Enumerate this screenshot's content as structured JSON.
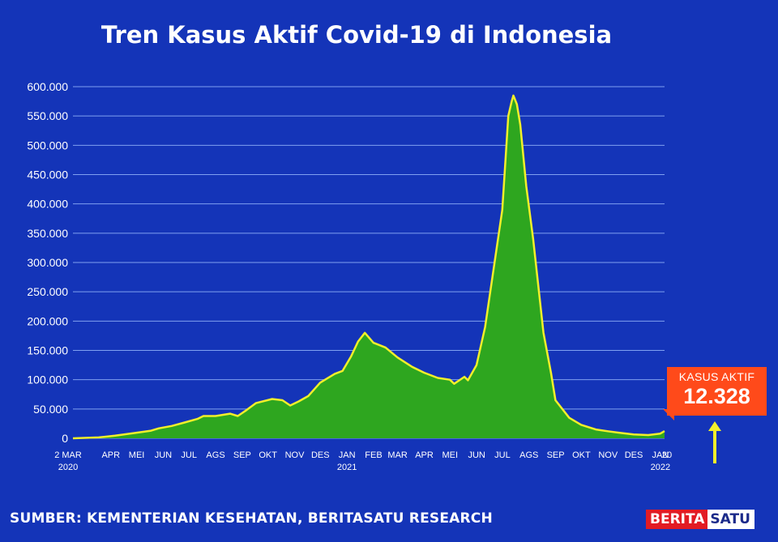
{
  "title": "Tren Kasus Aktif Covid-19 di Indonesia",
  "source": "SUMBER: KEMENTERIAN KESEHATAN, BERITASATU RESEARCH",
  "logo": {
    "part1": "BERITA",
    "part2": "SATU"
  },
  "callout": {
    "label": "KASUS AKTIF",
    "value": "12.328"
  },
  "colors": {
    "background": "#1434b8",
    "fill": "#2ea61f",
    "line": "#f2ef2a",
    "callout": "#ff4a1a",
    "gridline": "#7fa0f0"
  },
  "icons": {
    "arrow": "arrow-up-icon"
  },
  "chart_data": {
    "type": "area",
    "title": "Tren Kasus Aktif Covid-19 di Indonesia",
    "xlabel": "",
    "ylabel": "",
    "ylim": [
      0,
      600000
    ],
    "xlim": [
      "2020-03-02",
      "2022-01-20"
    ],
    "grid": true,
    "y_ticks": [
      "0",
      "50.000",
      "100.000",
      "150.000",
      "200.000",
      "250.000",
      "300.000",
      "350.000",
      "400.000",
      "450.000",
      "500.000",
      "550.000",
      "600.000"
    ],
    "x_ticks": [
      {
        "date": "2020-03-02",
        "label": "2 MAR",
        "sub": "2020"
      },
      {
        "date": "2020-04-01",
        "label": "APR"
      },
      {
        "date": "2020-05-01",
        "label": "MEI"
      },
      {
        "date": "2020-06-01",
        "label": "JUN"
      },
      {
        "date": "2020-07-01",
        "label": "JUL"
      },
      {
        "date": "2020-08-01",
        "label": "AGS"
      },
      {
        "date": "2020-09-01",
        "label": "SEP"
      },
      {
        "date": "2020-10-01",
        "label": "OKT"
      },
      {
        "date": "2020-11-01",
        "label": "NOV"
      },
      {
        "date": "2020-12-01",
        "label": "DES"
      },
      {
        "date": "2021-01-01",
        "label": "JAN",
        "sub": "2021"
      },
      {
        "date": "2021-02-01",
        "label": "FEB"
      },
      {
        "date": "2021-03-01",
        "label": "MAR"
      },
      {
        "date": "2021-04-01",
        "label": "APR"
      },
      {
        "date": "2021-05-01",
        "label": "MEI"
      },
      {
        "date": "2021-06-01",
        "label": "JUN"
      },
      {
        "date": "2021-07-01",
        "label": "JUL"
      },
      {
        "date": "2021-08-01",
        "label": "AGS"
      },
      {
        "date": "2021-09-01",
        "label": "SEP"
      },
      {
        "date": "2021-10-01",
        "label": "OKT"
      },
      {
        "date": "2021-11-01",
        "label": "NOV"
      },
      {
        "date": "2021-12-01",
        "label": "DES"
      },
      {
        "date": "2022-01-01",
        "label": "JAN",
        "sub": "2022"
      },
      {
        "date": "2022-01-20",
        "label": "20"
      }
    ],
    "series": [
      {
        "name": "Kasus Aktif",
        "points": [
          [
            "2020-03-02",
            0
          ],
          [
            "2020-04-01",
            1500
          ],
          [
            "2020-04-20",
            4500
          ],
          [
            "2020-05-10",
            8500
          ],
          [
            "2020-06-01",
            13000
          ],
          [
            "2020-06-10",
            17000
          ],
          [
            "2020-06-25",
            21000
          ],
          [
            "2020-07-10",
            27000
          ],
          [
            "2020-07-25",
            33000
          ],
          [
            "2020-08-01",
            38000
          ],
          [
            "2020-08-15",
            38000
          ],
          [
            "2020-09-01",
            42000
          ],
          [
            "2020-09-10",
            38000
          ],
          [
            "2020-09-20",
            48000
          ],
          [
            "2020-10-01",
            60000
          ],
          [
            "2020-10-20",
            67000
          ],
          [
            "2020-11-01",
            65000
          ],
          [
            "2020-11-10",
            56000
          ],
          [
            "2020-11-20",
            63000
          ],
          [
            "2020-12-01",
            72000
          ],
          [
            "2020-12-15",
            95000
          ],
          [
            "2021-01-01",
            110000
          ],
          [
            "2021-01-10",
            115000
          ],
          [
            "2021-01-20",
            140000
          ],
          [
            "2021-01-28",
            165000
          ],
          [
            "2021-02-05",
            180000
          ],
          [
            "2021-02-15",
            163000
          ],
          [
            "2021-03-01",
            155000
          ],
          [
            "2021-03-15",
            138000
          ],
          [
            "2021-04-01",
            122000
          ],
          [
            "2021-04-15",
            112000
          ],
          [
            "2021-05-01",
            103000
          ],
          [
            "2021-05-15",
            100000
          ],
          [
            "2021-05-20",
            93000
          ],
          [
            "2021-06-01",
            105000
          ],
          [
            "2021-06-05",
            99000
          ],
          [
            "2021-06-15",
            125000
          ],
          [
            "2021-06-25",
            190000
          ],
          [
            "2021-07-05",
            290000
          ],
          [
            "2021-07-15",
            390000
          ],
          [
            "2021-07-22",
            550000
          ],
          [
            "2021-07-26",
            575000
          ],
          [
            "2021-07-28",
            585000
          ],
          [
            "2021-08-01",
            570000
          ],
          [
            "2021-08-05",
            535000
          ],
          [
            "2021-08-12",
            430000
          ],
          [
            "2021-08-20",
            340000
          ],
          [
            "2021-09-01",
            180000
          ],
          [
            "2021-09-10",
            110000
          ],
          [
            "2021-09-15",
            65000
          ],
          [
            "2021-10-01",
            35000
          ],
          [
            "2021-10-15",
            23000
          ],
          [
            "2021-11-01",
            15000
          ],
          [
            "2021-11-15",
            12000
          ],
          [
            "2021-12-01",
            9000
          ],
          [
            "2021-12-15",
            6500
          ],
          [
            "2022-01-01",
            5500
          ],
          [
            "2022-01-15",
            8000
          ],
          [
            "2022-01-20",
            12328
          ]
        ]
      }
    ]
  }
}
